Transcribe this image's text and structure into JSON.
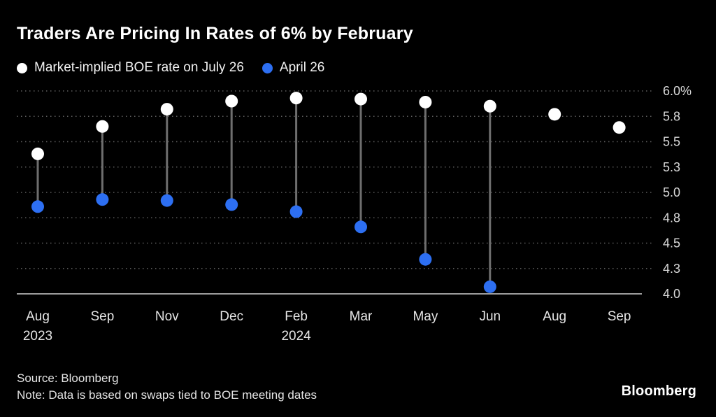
{
  "title": "Traders Are Pricing In Rates of 6% by February",
  "legend": [
    {
      "label": "Market-implied BOE rate on July 26",
      "color": "#ffffff"
    },
    {
      "label": "April 26",
      "color": "#2d6ff2"
    }
  ],
  "source_line": "Source: Bloomberg",
  "note_line": "Note: Data is based on swaps tied to BOE meeting dates",
  "brand": "Bloomberg",
  "chart_data": {
    "type": "scatter",
    "subtype": "dumbbell-dot-plot",
    "categories": [
      {
        "label": "Aug",
        "sublabel": "2023"
      },
      {
        "label": "Sep",
        "sublabel": ""
      },
      {
        "label": "Nov",
        "sublabel": ""
      },
      {
        "label": "Dec",
        "sublabel": ""
      },
      {
        "label": "Feb",
        "sublabel": "2024"
      },
      {
        "label": "Mar",
        "sublabel": ""
      },
      {
        "label": "May",
        "sublabel": ""
      },
      {
        "label": "Jun",
        "sublabel": ""
      },
      {
        "label": "Aug",
        "sublabel": ""
      },
      {
        "label": "Sep",
        "sublabel": ""
      }
    ],
    "series": [
      {
        "name": "Market-implied BOE rate on July 26",
        "color": "#ffffff",
        "values": [
          5.38,
          5.65,
          5.82,
          5.9,
          5.93,
          5.92,
          5.89,
          5.85,
          5.77,
          5.64
        ]
      },
      {
        "name": "April 26",
        "color": "#2d6ff2",
        "values": [
          4.86,
          4.93,
          4.92,
          4.88,
          4.81,
          4.66,
          4.34,
          4.07,
          null,
          null
        ]
      }
    ],
    "ylim": [
      4.0,
      6.0
    ],
    "yticks": [
      {
        "value": 6.0,
        "label": "6.0%"
      },
      {
        "value": 5.75,
        "label": "5.8"
      },
      {
        "value": 5.5,
        "label": "5.5"
      },
      {
        "value": 5.25,
        "label": "5.3"
      },
      {
        "value": 5.0,
        "label": "5.0"
      },
      {
        "value": 4.75,
        "label": "4.8"
      },
      {
        "value": 4.5,
        "label": "4.5"
      },
      {
        "value": 4.25,
        "label": "4.3"
      },
      {
        "value": 4.0,
        "label": "4.0"
      }
    ],
    "grid": "dotted horizontal, labels on right",
    "legend_position": "top-left",
    "connector_color": "#6e6e6e",
    "xlabel": "",
    "ylabel": ""
  }
}
